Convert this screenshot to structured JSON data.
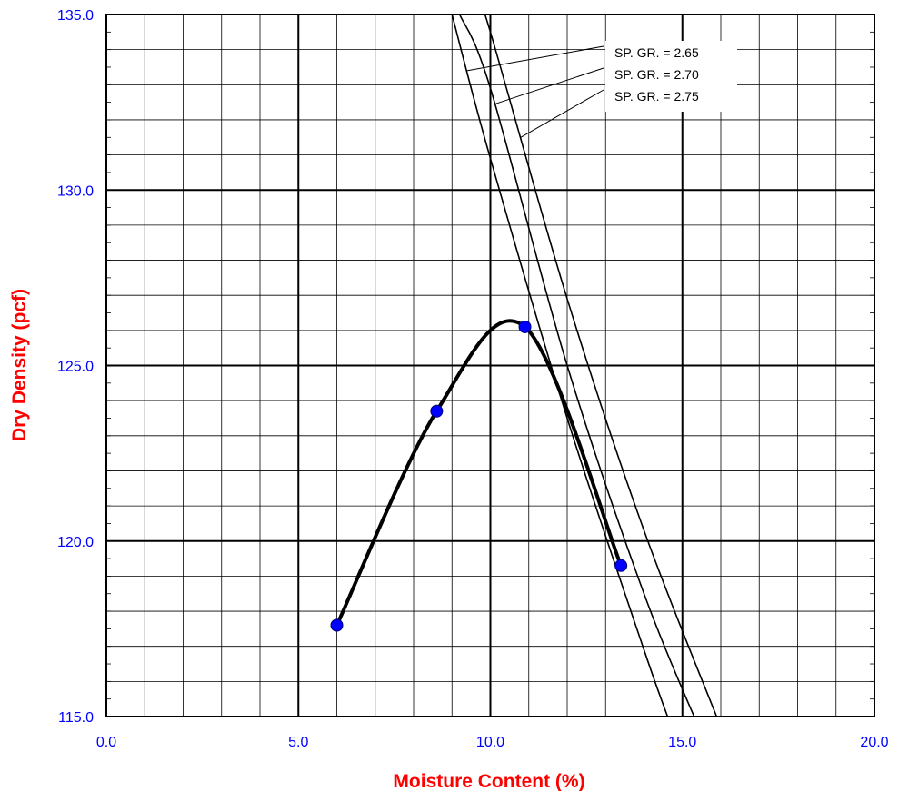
{
  "chart_data": {
    "type": "scatter",
    "xlabel": "Moisture Content (%)",
    "ylabel": "Dry Density (pcf)",
    "xlim": [
      0,
      20
    ],
    "ylim": [
      115,
      135
    ],
    "x_ticks": [
      "0.0",
      "5.0",
      "10.0",
      "15.0",
      "20.0"
    ],
    "y_ticks": [
      "115.0",
      "120.0",
      "125.0",
      "130.0",
      "135.0"
    ],
    "grid": true,
    "legend_position": "top-right",
    "series": [
      {
        "type": "scatter-smooth",
        "color": "#0000ff",
        "line_color": "#000000",
        "x": [
          6.0,
          8.6,
          10.9,
          13.4
        ],
        "y": [
          117.6,
          123.7,
          126.1,
          119.3
        ]
      }
    ],
    "zero_air_voids": [
      {
        "name": "SP. GR. = 2.65",
        "specific_gravity": 2.65,
        "points": [
          [
            9.0,
            135.0
          ],
          [
            10.0,
            130.9
          ],
          [
            12.0,
            123.5
          ],
          [
            14.0,
            116.9
          ],
          [
            14.75,
            114.6
          ]
        ]
      },
      {
        "name": "SP. GR. = 2.70",
        "specific_gravity": 2.7,
        "points": [
          [
            9.2,
            135.0
          ],
          [
            10.0,
            132.9
          ],
          [
            12.0,
            125.0
          ],
          [
            14.0,
            118.5
          ],
          [
            15.5,
            114.5
          ]
        ]
      },
      {
        "name": "SP. GR. = 2.75",
        "specific_gravity": 2.75,
        "points": [
          [
            9.8,
            135.0
          ],
          [
            10.0,
            134.5
          ],
          [
            12.0,
            126.9
          ],
          [
            14.0,
            120.3
          ],
          [
            16.0,
            114.7
          ]
        ]
      }
    ]
  }
}
